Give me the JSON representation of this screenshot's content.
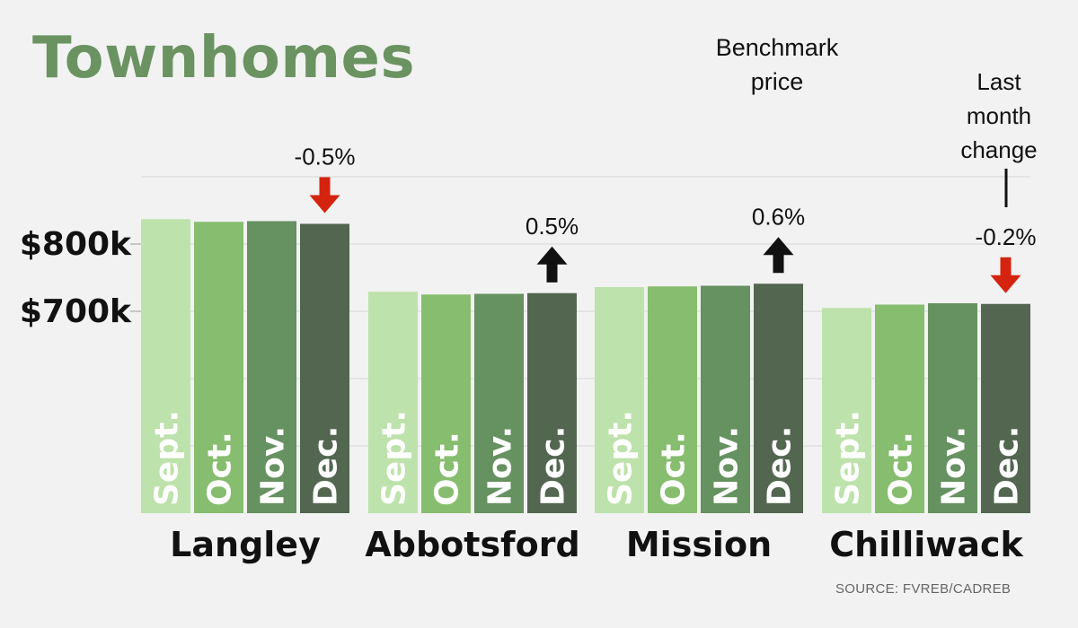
{
  "title": "Townhomes",
  "legend_labels": {
    "benchmark": "Benchmark price",
    "change": "Last month change"
  },
  "source": "SOURCE: FVREB/CADREB",
  "colors": {
    "title": "#6a9361",
    "months": [
      "#bde2ab",
      "#87bd6f",
      "#669160",
      "#526650"
    ],
    "up_arrow": "#111111",
    "down_arrow": "#d42410",
    "gridline": "#d6d6d6"
  },
  "chart_data": {
    "type": "bar",
    "title": "Townhomes",
    "ylabel": "Benchmark price",
    "y_ticks": [
      "$800k",
      "$700k"
    ],
    "y_tick_values": [
      800000,
      700000
    ],
    "ylim": [
      400000,
      900000
    ],
    "categories": [
      "Langley",
      "Abbotsford",
      "Mission",
      "Chilliwack"
    ],
    "months": [
      "Sept.",
      "Oct.",
      "Nov.",
      "Dec."
    ],
    "series": [
      {
        "name": "Sept.",
        "values": [
          837000,
          729000,
          736000,
          705000
        ]
      },
      {
        "name": "Oct.",
        "values": [
          833000,
          725000,
          737000,
          710000
        ]
      },
      {
        "name": "Nov.",
        "values": [
          834000,
          726000,
          738000,
          712000
        ]
      },
      {
        "name": "Dec.",
        "values": [
          830000,
          727000,
          741000,
          711000
        ]
      }
    ],
    "changes": [
      {
        "text": "-0.5%",
        "direction": "down"
      },
      {
        "text": "0.5%",
        "direction": "up"
      },
      {
        "text": "0.6%",
        "direction": "up"
      },
      {
        "text": "-0.2%",
        "direction": "down"
      }
    ],
    "grid": true
  }
}
